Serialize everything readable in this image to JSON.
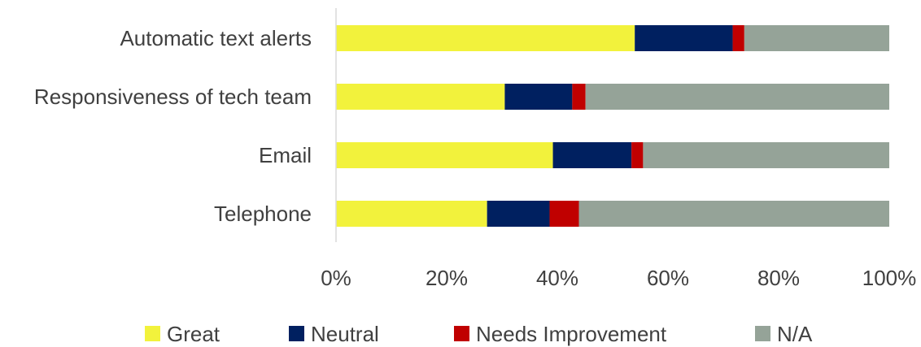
{
  "chart_data": {
    "type": "bar",
    "orientation": "horizontal",
    "stacked": "percent",
    "categories": [
      "Automatic text alerts",
      "Responsiveness of tech team",
      "Email",
      "Telephone"
    ],
    "series": [
      {
        "name": "Great",
        "color": "#F2F23C",
        "values": [
          54,
          30.5,
          39.2,
          27.3
        ]
      },
      {
        "name": "Neutral",
        "color": "#002060",
        "values": [
          17.7,
          12.2,
          14.2,
          11.3
        ]
      },
      {
        "name": "Needs Improvement",
        "color": "#C00000",
        "values": [
          2.1,
          2.4,
          2.1,
          5.3
        ]
      },
      {
        "name": "N/A",
        "color": "#95A398",
        "values": [
          26.2,
          54.9,
          44.5,
          56.1
        ]
      }
    ],
    "xlim": [
      0,
      100
    ],
    "xticks": [
      "0%",
      "20%",
      "40%",
      "60%",
      "80%",
      "100%"
    ],
    "legend_position": "bottom",
    "grid": false
  }
}
